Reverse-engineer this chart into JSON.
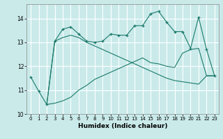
{
  "xlabel": "Humidex (Indice chaleur)",
  "bg_color": "#caeaea",
  "grid_color": "#ffffff",
  "line_color": "#1a7a6a",
  "xlim": [
    -0.5,
    23.5
  ],
  "ylim": [
    10.0,
    14.6
  ],
  "yticks": [
    10,
    11,
    12,
    13,
    14
  ],
  "xticks": [
    0,
    1,
    2,
    3,
    4,
    5,
    6,
    7,
    8,
    9,
    10,
    11,
    12,
    13,
    14,
    15,
    16,
    17,
    18,
    19,
    20,
    21,
    22,
    23
  ],
  "series1_x": [
    0,
    1,
    2,
    3,
    4,
    5,
    6,
    7,
    8,
    9,
    10,
    11,
    12,
    13,
    14,
    15,
    16,
    17,
    18,
    19,
    20,
    21,
    22,
    23
  ],
  "series1_y": [
    11.55,
    10.95,
    10.4,
    13.05,
    13.55,
    13.65,
    13.35,
    13.05,
    13.0,
    13.05,
    13.35,
    13.3,
    13.3,
    13.7,
    13.7,
    14.2,
    14.3,
    13.85,
    13.45,
    13.45,
    12.75,
    14.05,
    12.7,
    11.6
  ],
  "series2_x": [
    2,
    3,
    4,
    5,
    6,
    7,
    8,
    9,
    10,
    11,
    12,
    13,
    14,
    15,
    16,
    17,
    18,
    19,
    20,
    21,
    22,
    23
  ],
  "series2_y": [
    10.4,
    10.45,
    10.55,
    10.7,
    11.0,
    11.2,
    11.45,
    11.6,
    11.75,
    11.9,
    12.05,
    12.2,
    12.35,
    12.15,
    12.1,
    12.0,
    11.95,
    12.55,
    12.7,
    12.75,
    11.6,
    11.6
  ],
  "series3_x": [
    2,
    3,
    4,
    5,
    6,
    7,
    8,
    9,
    10,
    11,
    12,
    13,
    14,
    15,
    16,
    17,
    18,
    19,
    20,
    21,
    22,
    23
  ],
  "series3_y": [
    10.4,
    13.05,
    13.2,
    13.3,
    13.2,
    13.0,
    12.85,
    12.7,
    12.55,
    12.4,
    12.25,
    12.1,
    11.95,
    11.8,
    11.65,
    11.5,
    11.4,
    11.35,
    11.3,
    11.25,
    11.6,
    11.6
  ]
}
